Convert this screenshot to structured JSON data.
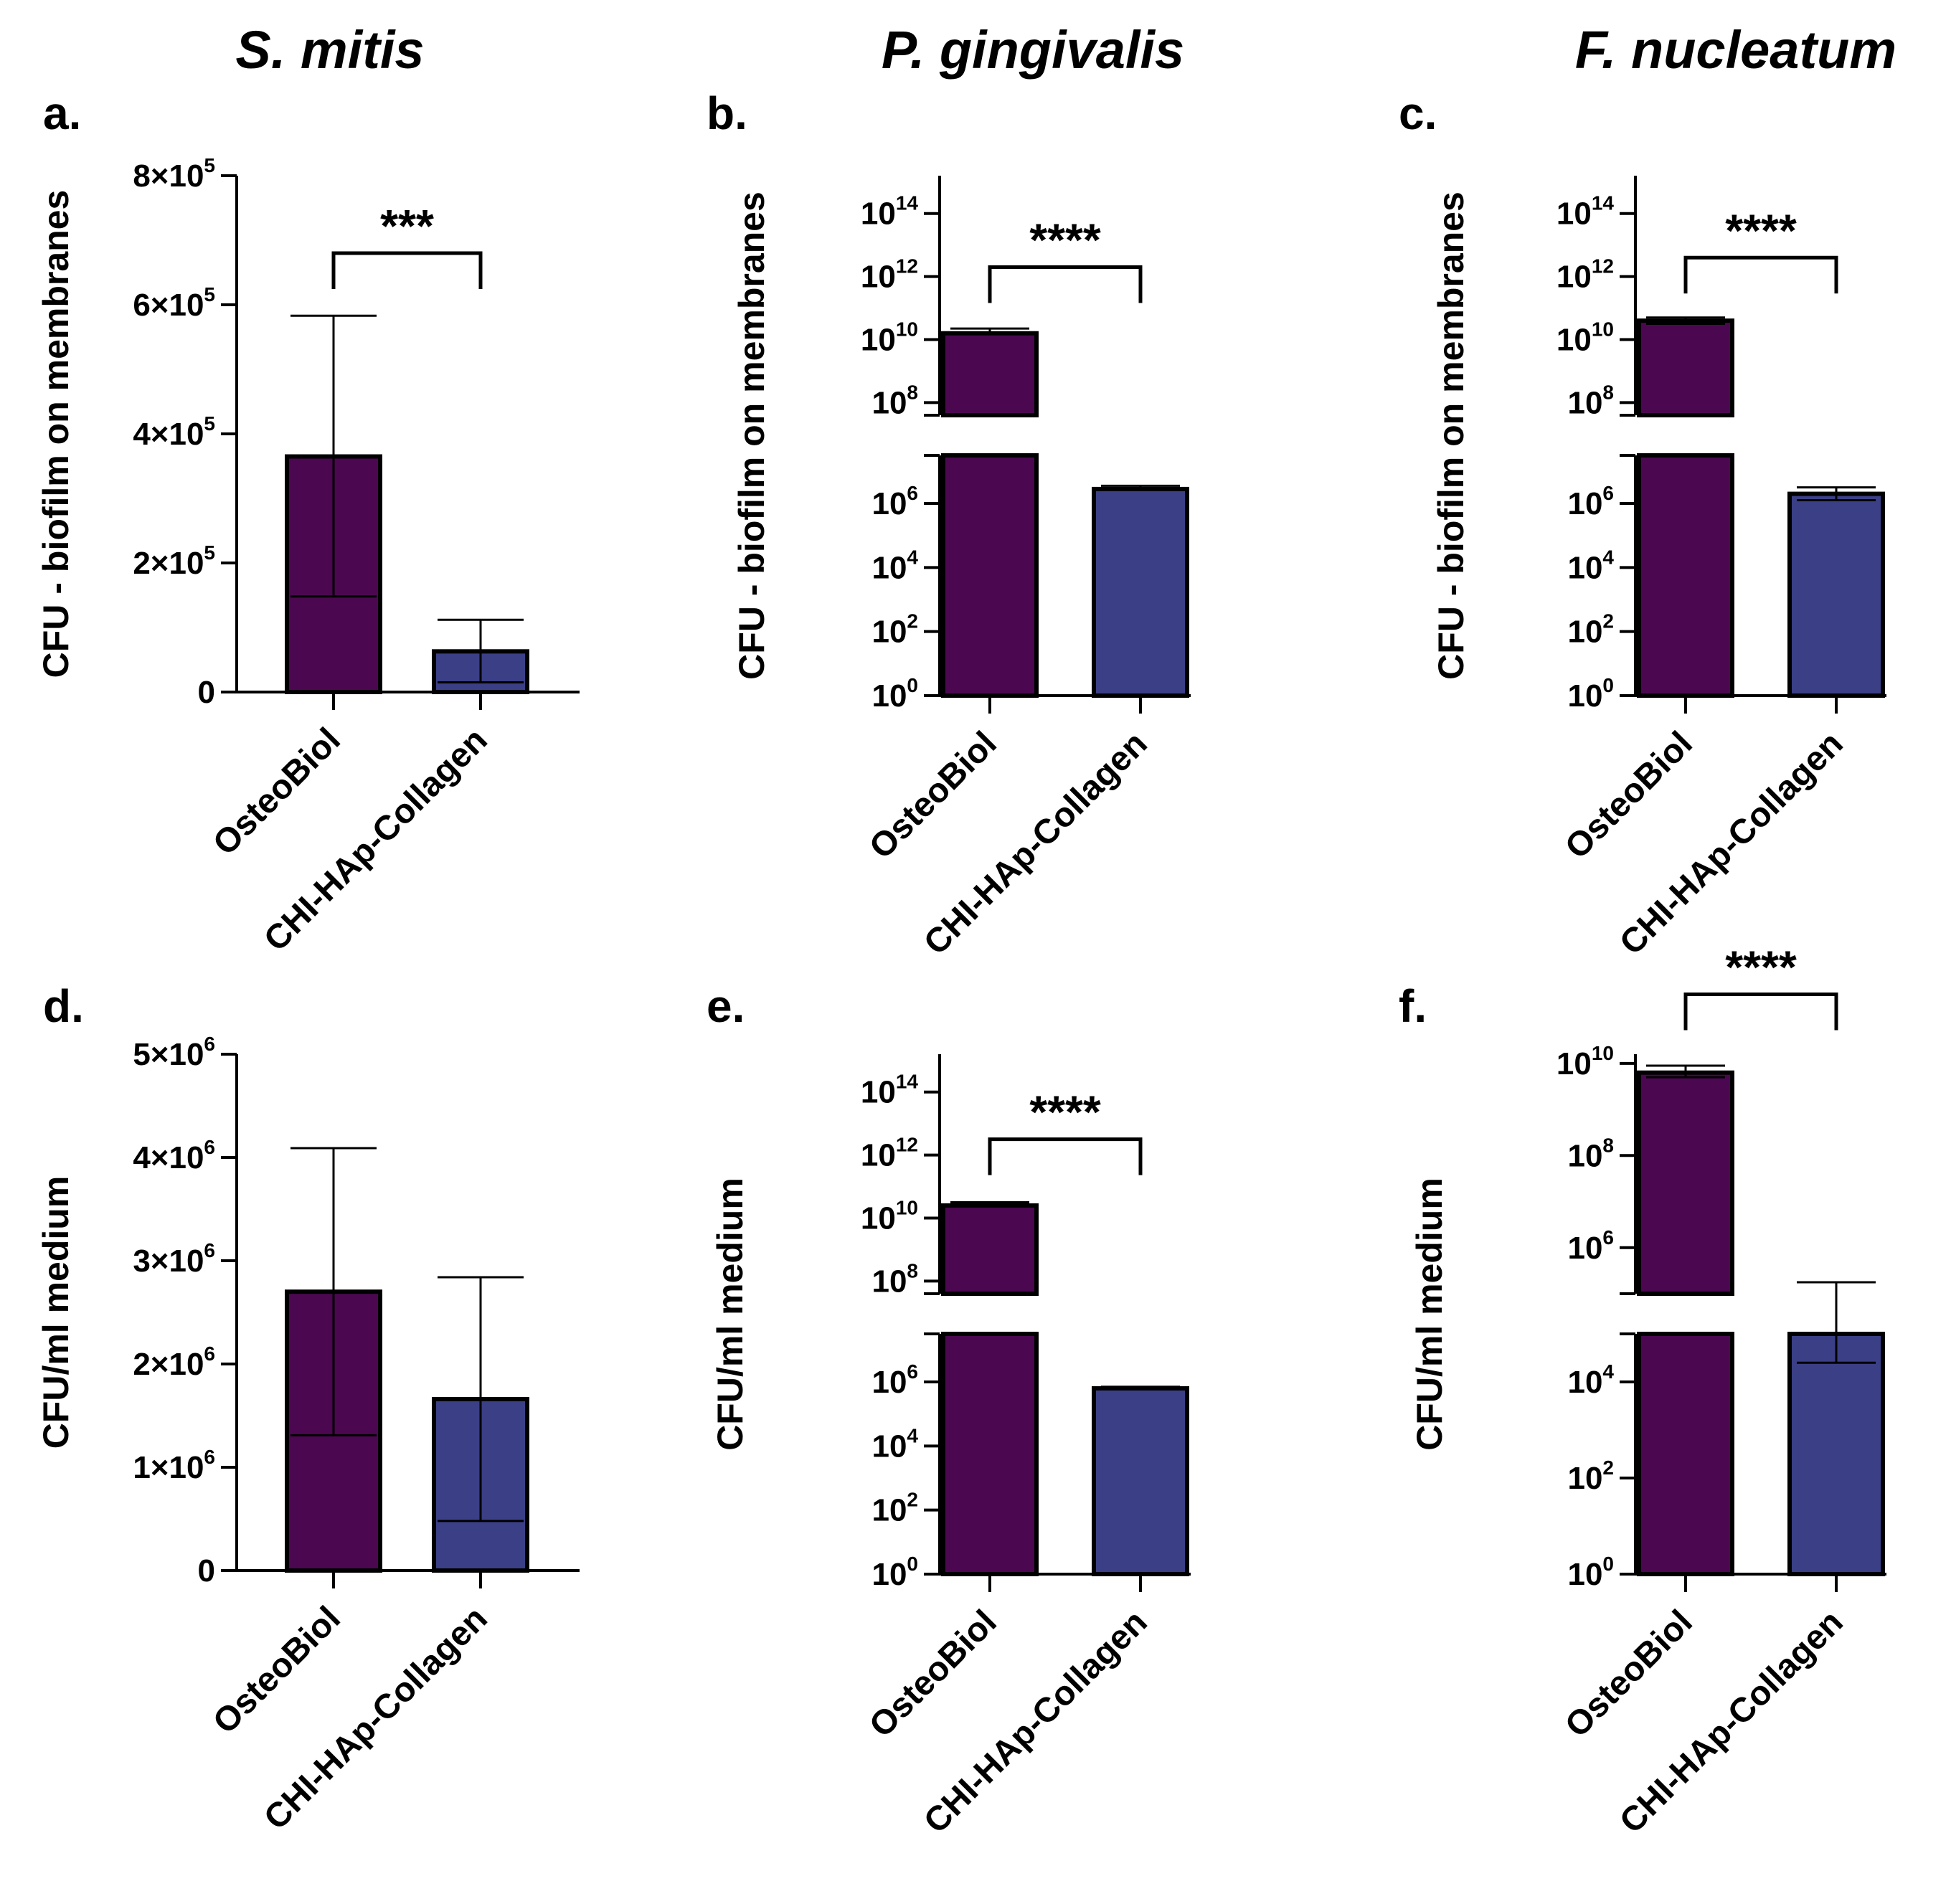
{
  "colors": {
    "osteobiol": "#4b0850",
    "chi_hap_collagen": "#3b3f86",
    "axis": "#000000"
  },
  "species": [
    "S. mitis",
    "P. gingivalis",
    "F. nucleatum"
  ],
  "chart_data": [
    {
      "panel": "a.",
      "type": "bar",
      "scale": "linear",
      "ylabel": "CFU - biofilm on membranes",
      "categories": [
        "OsteoBiol",
        "CHI-HAp-Collagen"
      ],
      "values": [
        365000,
        63000
      ],
      "error_upper": [
        583000,
        112000
      ],
      "error_lower": [
        148000,
        15000
      ],
      "ylim": [
        0,
        800000
      ],
      "ticks": [
        {
          "v": 0,
          "m": "0",
          "e": ""
        },
        {
          "v": 200000,
          "m": "2×10",
          "e": "5"
        },
        {
          "v": 400000,
          "m": "4×10",
          "e": "5"
        },
        {
          "v": 600000,
          "m": "6×10",
          "e": "5"
        },
        {
          "v": 800000,
          "m": "8×10",
          "e": "5"
        }
      ],
      "significance": "***",
      "bracket_y": 680000
    },
    {
      "panel": "b.",
      "type": "bar",
      "scale": "log_broken",
      "ylabel": "CFU - biofilm on membranes",
      "categories": [
        "OsteoBiol",
        "CHI-HAp-Collagen"
      ],
      "log_values": [
        10.2,
        6.45
      ],
      "log_error_upper": [
        10.35,
        6.55
      ],
      "log_error_lower": [
        10.2,
        6.45
      ],
      "lower_segment": [
        0,
        7.5
      ],
      "upper_segment": [
        7.6,
        15.2
      ],
      "ticks": [
        0,
        2,
        4,
        6,
        8,
        10,
        12,
        14
      ],
      "significance": "****",
      "bracket_log": 12.3
    },
    {
      "panel": "c.",
      "type": "bar",
      "scale": "log_broken",
      "ylabel": "CFU - biofilm on membranes",
      "categories": [
        "OsteoBiol",
        "CHI-HAp-Collagen"
      ],
      "log_values": [
        10.6,
        6.3
      ],
      "log_error_upper": [
        10.7,
        6.5
      ],
      "log_error_lower": [
        10.5,
        6.1
      ],
      "lower_segment": [
        0,
        7.5
      ],
      "upper_segment": [
        7.6,
        15.2
      ],
      "ticks": [
        0,
        2,
        4,
        6,
        8,
        10,
        12,
        14
      ],
      "significance": "****",
      "bracket_log": 12.6
    },
    {
      "panel": "d.",
      "type": "bar",
      "scale": "linear",
      "ylabel": "CFU/ml medium",
      "categories": [
        "OsteoBiol",
        "CHI-HAp-Collagen"
      ],
      "values": [
        2700000,
        1660000
      ],
      "error_upper": [
        4090000,
        2840000
      ],
      "error_lower": [
        1310000,
        480000
      ],
      "ylim": [
        0,
        5000000
      ],
      "ticks": [
        {
          "v": 0,
          "m": "0",
          "e": ""
        },
        {
          "v": 1000000,
          "m": "1×10",
          "e": "6"
        },
        {
          "v": 2000000,
          "m": "2×10",
          "e": "6"
        },
        {
          "v": 3000000,
          "m": "3×10",
          "e": "6"
        },
        {
          "v": 4000000,
          "m": "4×10",
          "e": "6"
        },
        {
          "v": 5000000,
          "m": "5×10",
          "e": "6"
        }
      ],
      "significance": "",
      "bracket_y": 0
    },
    {
      "panel": "e.",
      "type": "bar",
      "scale": "log_broken",
      "ylabel": "CFU/ml medium",
      "categories": [
        "OsteoBiol",
        "CHI-HAp-Collagen"
      ],
      "log_values": [
        10.4,
        5.8
      ],
      "log_error_upper": [
        10.5,
        5.85
      ],
      "log_error_lower": [
        10.4,
        5.8
      ],
      "lower_segment": [
        0,
        7.5
      ],
      "upper_segment": [
        7.6,
        15.2
      ],
      "ticks": [
        0,
        2,
        4,
        6,
        8,
        10,
        12,
        14
      ],
      "significance": "****",
      "bracket_log": 12.5
    },
    {
      "panel": "f.",
      "type": "bar",
      "scale": "log_broken",
      "ylabel": "CFU/ml medium",
      "categories": [
        "OsteoBiol",
        "CHI-HAp-Collagen"
      ],
      "log_values": [
        9.8,
        5.0
      ],
      "log_error_upper": [
        9.95,
        5.25
      ],
      "log_error_lower": [
        9.7,
        4.4
      ],
      "lower_segment": [
        0,
        5.0
      ],
      "upper_segment": [
        5.0,
        10.2
      ],
      "ticks": [
        0,
        2,
        4,
        6,
        8,
        10
      ],
      "significance": "****",
      "bracket_log": 11.5
    }
  ]
}
